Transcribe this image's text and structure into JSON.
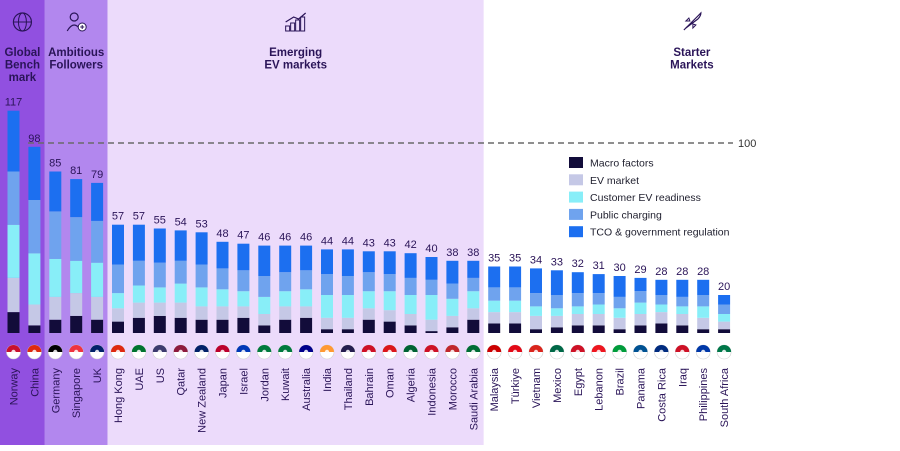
{
  "groups": [
    {
      "label_lines": [
        "Global",
        "Bench",
        "mark"
      ],
      "icon": "globe-icon",
      "color": "#9150e0"
    },
    {
      "label_lines": [
        "Ambitious",
        "Followers"
      ],
      "icon": "person-plus-icon",
      "color": "#b287ee"
    },
    {
      "label_lines": [
        "Emerging",
        "EV markets"
      ],
      "icon": "growth-chart-icon",
      "color": "#ecdbfb"
    },
    {
      "label_lines": [
        "Starter",
        "Markets"
      ],
      "icon": "rocket-icon",
      "color": "#ffffff"
    }
  ],
  "reference": {
    "value": 100,
    "label": "100"
  },
  "legend": [
    {
      "name": "Macro factors",
      "color": "#120c3a"
    },
    {
      "name": "EV market",
      "color": "#c5c8e6"
    },
    {
      "name": "Customer EV readiness",
      "color": "#88eef8"
    },
    {
      "name": "Public charging",
      "color": "#6fa3ee"
    },
    {
      "name": "TCO & government regulation",
      "color": "#1c6ff0"
    }
  ],
  "chart_data": {
    "type": "bar",
    "stacked": true,
    "categories": [
      "Norway",
      "China",
      "Germany",
      "Singapore",
      "UK",
      "Hong Kong",
      "UAE",
      "US",
      "Qatar",
      "New Zealand",
      "Japan",
      "Israel",
      "Jordan",
      "Kuwait",
      "Australia",
      "India",
      "Thailand",
      "Bahrain",
      "Oman",
      "Algeria",
      "Indonesia",
      "Morocco",
      "Saudi Arabia",
      "Malaysia",
      "Türkiye",
      "Vietnam",
      "Mexico",
      "Egypt",
      "Lebanon",
      "Brazil",
      "Panama",
      "Costa Rica",
      "Iraq",
      "Philippines",
      "South Africa"
    ],
    "group_sizes": [
      2,
      3,
      18,
      12
    ],
    "totals": [
      117,
      98,
      85,
      81,
      79,
      57,
      57,
      55,
      54,
      53,
      48,
      47,
      46,
      46,
      46,
      44,
      44,
      43,
      43,
      42,
      40,
      38,
      38,
      35,
      35,
      34,
      33,
      32,
      31,
      30,
      29,
      28,
      28,
      28,
      20
    ],
    "series": [
      {
        "name": "Macro factors",
        "values": [
          11,
          4,
          7,
          9,
          7,
          6,
          8,
          9,
          8,
          7,
          7,
          8,
          4,
          7,
          8,
          2,
          2,
          7,
          6,
          4,
          1,
          3,
          7,
          5,
          5,
          2,
          3,
          4,
          4,
          2,
          4,
          5,
          4,
          2,
          2
        ]
      },
      {
        "name": "EV market",
        "values": [
          18,
          11,
          12,
          12,
          12,
          7,
          8,
          7,
          8,
          7,
          7,
          6,
          6,
          7,
          6,
          6,
          6,
          6,
          6,
          6,
          6,
          6,
          6,
          6,
          6,
          7,
          6,
          6,
          6,
          6,
          6,
          6,
          6,
          6,
          4
        ]
      },
      {
        "name": "Customer EV readiness",
        "values": [
          28,
          27,
          20,
          17,
          18,
          8,
          9,
          8,
          10,
          10,
          9,
          8,
          9,
          8,
          9,
          12,
          12,
          9,
          10,
          10,
          13,
          9,
          9,
          6,
          6,
          5,
          4,
          4,
          5,
          5,
          6,
          4,
          4,
          6,
          4
        ]
      },
      {
        "name": "Public charging",
        "values": [
          28,
          28,
          25,
          23,
          22,
          15,
          13,
          13,
          12,
          12,
          11,
          11,
          11,
          10,
          10,
          11,
          10,
          10,
          9,
          9,
          8,
          8,
          7,
          7,
          7,
          7,
          7,
          7,
          6,
          6,
          6,
          5,
          5,
          6,
          5
        ]
      },
      {
        "name": "TCO & government regulation",
        "values": [
          32,
          28,
          21,
          20,
          20,
          21,
          19,
          18,
          16,
          17,
          14,
          14,
          16,
          14,
          13,
          13,
          14,
          11,
          12,
          13,
          12,
          12,
          9,
          11,
          11,
          13,
          13,
          11,
          10,
          11,
          7,
          8,
          9,
          8,
          5
        ]
      }
    ],
    "ylim": [
      0,
      120
    ],
    "title": "",
    "xlabel": "",
    "ylabel": ""
  }
}
